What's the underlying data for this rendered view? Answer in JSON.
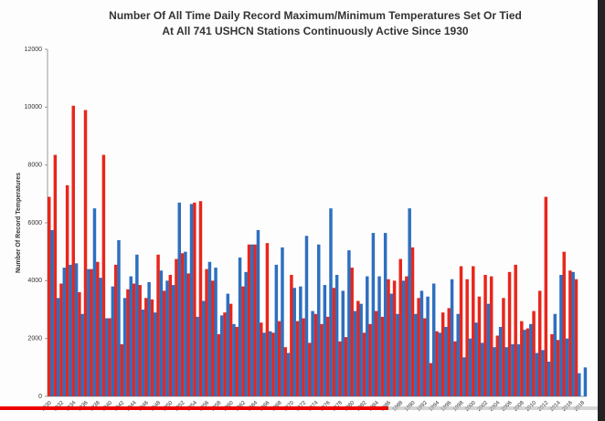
{
  "chart_data": {
    "type": "bar",
    "title": [
      "Number Of All Time Daily Record Maximum/Minimum Temperatures Set Or Tied",
      "At All 741 USHCN Stations Continuously Active Since 1930"
    ],
    "y_label": "Number Of Record Temperatures",
    "categories": [
      "1930",
      null,
      "1932",
      null,
      "1934",
      null,
      "1936",
      null,
      "1938",
      null,
      "1940",
      null,
      "1942",
      null,
      "1944",
      null,
      "1946",
      null,
      "1948",
      null,
      "1950",
      null,
      "1952",
      null,
      "1954",
      null,
      "1956",
      null,
      "1958",
      null,
      "1960",
      null,
      "1962",
      null,
      "1964",
      null,
      "1966",
      null,
      "1968",
      null,
      "1970",
      null,
      "1972",
      null,
      "1974",
      null,
      "1976",
      null,
      "1978",
      null,
      "1980",
      null,
      "1982",
      null,
      "1984",
      null,
      "1986",
      null,
      "1988",
      null,
      "1990",
      null,
      "1992",
      null,
      "1994",
      null,
      "1996",
      null,
      "1998",
      null,
      "2000",
      null,
      "2002",
      null,
      "2004",
      null,
      "2006",
      null,
      "2008",
      null,
      "2010",
      null,
      "2012",
      null,
      "2014",
      null,
      "2016",
      null,
      "2018"
    ],
    "series": [
      {
        "color": "#e8261c",
        "values": [
          6900,
          8350,
          3900,
          7300,
          10050,
          3600,
          9900,
          4400,
          4650,
          8350,
          2700,
          4550,
          1800,
          3700,
          3900,
          3850,
          3400,
          3350,
          4900,
          3650,
          4200,
          4750,
          4950,
          4250,
          6700,
          6750,
          4400,
          4000,
          2150,
          2900,
          3200,
          2400,
          3800,
          5250,
          5250,
          2550,
          5300,
          2200,
          2600,
          1700,
          4200,
          2600,
          2700,
          1850,
          2850,
          2500,
          2750,
          3750,
          1900,
          2050,
          4450,
          3300,
          2200,
          2500,
          2950,
          2750,
          4050,
          4000,
          4750,
          4150,
          5150,
          3400,
          2700,
          1150,
          2250,
          2900,
          3050,
          1900,
          4500,
          4050,
          4500,
          3450,
          4200,
          4150,
          2100,
          3400,
          4300,
          4550,
          2600,
          2350,
          2950,
          3650,
          6900,
          2150,
          1950,
          5000,
          4350,
          4050,
          null
        ]
      },
      {
        "color": "#2e6fc0",
        "values": [
          5750,
          3400,
          4450,
          4550,
          4600,
          2850,
          4400,
          6500,
          4100,
          2700,
          3800,
          5400,
          3400,
          4150,
          4900,
          3000,
          3950,
          2900,
          4350,
          4000,
          3850,
          6700,
          5000,
          6650,
          2750,
          3300,
          4650,
          4450,
          2800,
          3550,
          2500,
          4800,
          4300,
          5250,
          5750,
          2200,
          2250,
          4550,
          5150,
          1500,
          3750,
          3800,
          5550,
          2950,
          5250,
          3850,
          6500,
          4200,
          3650,
          5050,
          2950,
          3200,
          4150,
          5650,
          4150,
          5650,
          3550,
          2850,
          4000,
          6500,
          2850,
          3650,
          3450,
          3900,
          2200,
          2400,
          4050,
          2850,
          1350,
          2000,
          2550,
          1850,
          3200,
          1700,
          2400,
          1700,
          1800,
          1800,
          2300,
          2500,
          1500,
          1600,
          1200,
          2850,
          4200,
          2000,
          4300,
          800,
          1000
        ]
      }
    ],
    "ylim": [
      0,
      12000
    ],
    "yticks": [
      0,
      2000,
      4000,
      6000,
      8000,
      10000,
      12000
    ]
  }
}
